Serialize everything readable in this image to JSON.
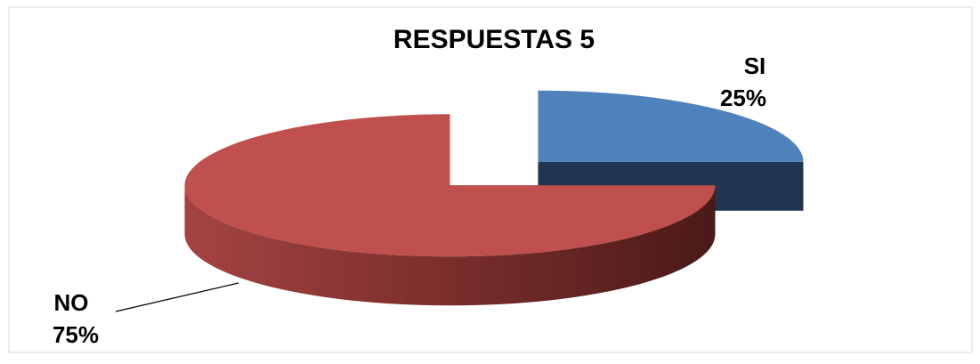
{
  "chart_data": {
    "type": "pie3d",
    "title": "RESPUESTAS 5",
    "categories": [
      "SI",
      "NO"
    ],
    "values": [
      25,
      75
    ],
    "value_labels": [
      "25%",
      "75%"
    ],
    "colors": [
      "#4f81bd",
      "#c0504d"
    ]
  }
}
